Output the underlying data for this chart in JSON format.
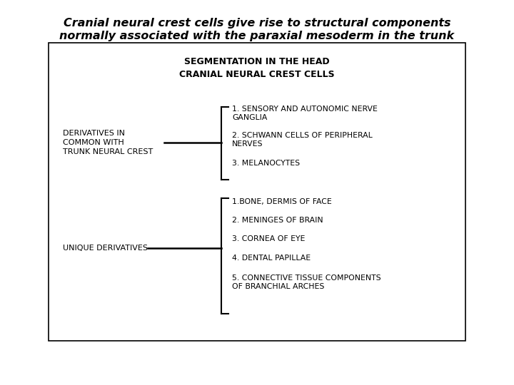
{
  "title_line1": "Cranial neural crest cells give rise to structural components",
  "title_line2": "normally associated with the paraxial mesoderm in the trunk",
  "box_title_line1": "SEGMENTATION IN THE HEAD",
  "box_title_line2": "CRANIAL NEURAL CREST CELLS",
  "group1_label": "DERIVATIVES IN\nCOMMON WITH\nTRUNK NEURAL CREST",
  "group1_items": [
    "1. SENSORY AND AUTONOMIC NERVE\nGANGLIA",
    "2. SCHWANN CELLS OF PERIPHERAL\nNERVES",
    "3. MELANOCYTES"
  ],
  "group2_label": "UNIQUE DERIVATIVES",
  "group2_items": [
    "1.BONE, DERMIS OF FACE",
    "2. MENINGES OF BRAIN",
    "3. CORNEA OF EYE",
    "4. DENTAL PAPILLAE",
    "5. CONNECTIVE TISSUE COMPONENTS\nOF BRANCHIAL ARCHES"
  ],
  "bg_color": "#ffffff",
  "text_color": "#000000",
  "box_edge_color": "#000000",
  "title_fontsize": 11.5,
  "label_fontsize": 8.0,
  "item_fontsize": 7.8,
  "header_fontsize": 9.0
}
